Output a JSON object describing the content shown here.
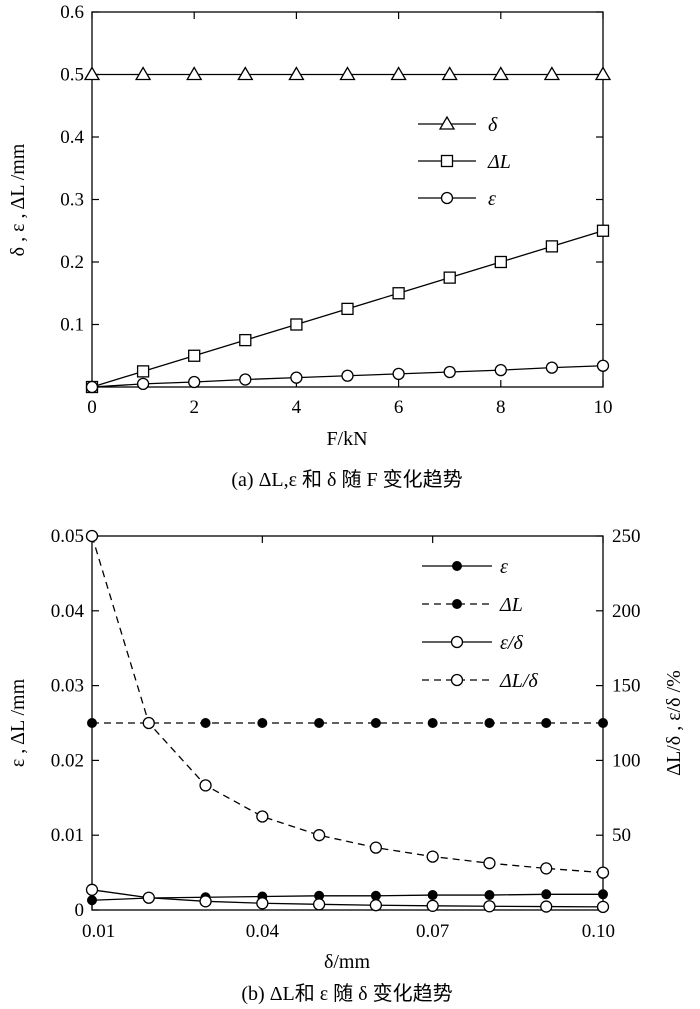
{
  "chart_data": [
    {
      "type": "line",
      "caption": "(a) ΔL,ε 和 δ 随 F 变化趋势",
      "xlabel": "F/kN",
      "ylabel": "δ , ε , ΔL /mm",
      "xlim": [
        0,
        10
      ],
      "ylim": [
        0,
        0.6
      ],
      "xticks": [
        "0",
        "2",
        "4",
        "6",
        "8",
        "10"
      ],
      "yticks": [
        "0.1",
        "0.2",
        "0.3",
        "0.4",
        "0.5",
        "0.6"
      ],
      "legend_position": "right",
      "series": [
        {
          "name": "δ",
          "marker": "triangle-open",
          "line": "solid",
          "x": [
            0,
            1,
            2,
            3,
            4,
            5,
            6,
            7,
            8,
            9,
            10
          ],
          "y": [
            0.5,
            0.5,
            0.5,
            0.5,
            0.5,
            0.5,
            0.5,
            0.5,
            0.5,
            0.5,
            0.5
          ]
        },
        {
          "name": "ΔL",
          "marker": "square-open",
          "line": "solid",
          "x": [
            0,
            1,
            2,
            3,
            4,
            5,
            6,
            7,
            8,
            9,
            10
          ],
          "y": [
            0,
            0.025,
            0.05,
            0.075,
            0.1,
            0.125,
            0.15,
            0.175,
            0.2,
            0.225,
            0.25
          ]
        },
        {
          "name": "ε",
          "marker": "circle-open",
          "line": "solid",
          "x": [
            0,
            1,
            2,
            3,
            4,
            5,
            6,
            7,
            8,
            9,
            10
          ],
          "y": [
            0,
            0.005,
            0.008,
            0.012,
            0.015,
            0.018,
            0.021,
            0.024,
            0.027,
            0.031,
            0.034
          ]
        }
      ]
    },
    {
      "type": "line",
      "caption": "(b) ΔL和 ε 随 δ 变化趋势",
      "xlabel": "δ/mm",
      "ylabel": "ε , ΔL /mm",
      "ylabel_right": "ΔL/δ , ε/δ /%",
      "xlim": [
        0.01,
        0.1
      ],
      "ylim": [
        0,
        0.05
      ],
      "ylim_right": [
        0,
        250
      ],
      "xticks": [
        "0.01",
        "0.04",
        "0.07",
        "0.10"
      ],
      "yticks": [
        "0",
        "0.01",
        "0.02",
        "0.03",
        "0.04",
        "0.05"
      ],
      "yticks_right": [
        "50",
        "100",
        "150",
        "200",
        "250"
      ],
      "legend_position": "top-right",
      "series": [
        {
          "name": "ε",
          "axis": "left",
          "marker": "circle-filled",
          "line": "solid",
          "x": [
            0.01,
            0.02,
            0.03,
            0.04,
            0.05,
            0.06,
            0.07,
            0.08,
            0.09,
            0.1
          ],
          "y": [
            0.0013,
            0.0016,
            0.0017,
            0.0018,
            0.0019,
            0.0019,
            0.002,
            0.002,
            0.0021,
            0.0021
          ]
        },
        {
          "name": "ΔL",
          "axis": "left",
          "marker": "circle-filled",
          "line": "dashed",
          "x": [
            0.01,
            0.02,
            0.03,
            0.04,
            0.05,
            0.06,
            0.07,
            0.08,
            0.09,
            0.1
          ],
          "y": [
            0.025,
            0.025,
            0.025,
            0.025,
            0.025,
            0.025,
            0.025,
            0.025,
            0.025,
            0.025
          ]
        },
        {
          "name": "ε/δ",
          "axis": "right",
          "marker": "circle-open",
          "line": "solid",
          "x": [
            0.01,
            0.02,
            0.03,
            0.04,
            0.05,
            0.06,
            0.07,
            0.08,
            0.09,
            0.1
          ],
          "y": [
            13.5,
            8.2,
            5.8,
            4.5,
            3.8,
            3.2,
            2.8,
            2.5,
            2.3,
            2.1
          ]
        },
        {
          "name": "ΔL/δ",
          "axis": "right",
          "marker": "circle-open",
          "line": "dashed",
          "x": [
            0.01,
            0.02,
            0.03,
            0.04,
            0.05,
            0.06,
            0.07,
            0.08,
            0.09,
            0.1
          ],
          "y": [
            250,
            125,
            83.3,
            62.5,
            50,
            41.7,
            35.7,
            31.3,
            27.8,
            25
          ]
        }
      ]
    }
  ]
}
